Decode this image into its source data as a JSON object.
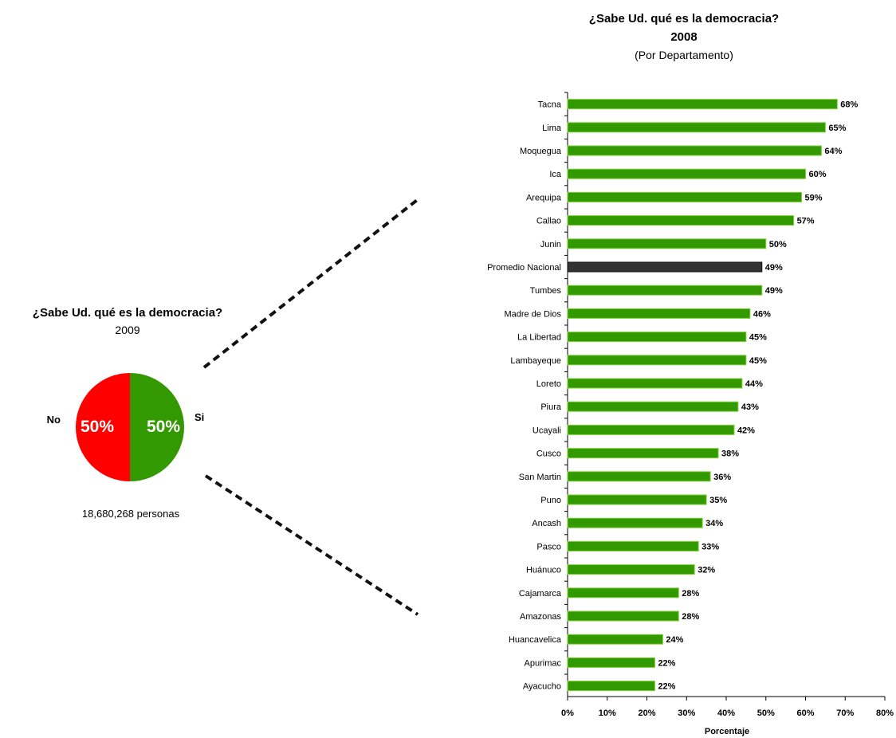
{
  "colors": {
    "yes": "#339900",
    "no": "#ff0000",
    "national": "#333333",
    "yes_border": "#7fd13b"
  },
  "chart_data": [
    {
      "type": "pie",
      "title": "¿Sabe Ud. qué es la democracia?",
      "subtitle": "2009",
      "slices": [
        {
          "label": "Si",
          "value": 50,
          "value_label": "50%"
        },
        {
          "label": "No",
          "value": 50,
          "value_label": "50%"
        }
      ],
      "footnote": "18,680,268 personas"
    },
    {
      "type": "bar",
      "orientation": "horizontal",
      "title": "¿Sabe Ud. qué es la democracia?",
      "subtitle": "2008",
      "subtitle2": "(Por Departamento)",
      "xlabel": "Porcentaje",
      "xlim": [
        0,
        80
      ],
      "xticks": [
        "0%",
        "10%",
        "20%",
        "30%",
        "40%",
        "50%",
        "60%",
        "70%",
        "80%"
      ],
      "highlight": "Promedio Nacional",
      "categories": [
        "Tacna",
        "Lima",
        "Moquegua",
        "Ica",
        "Arequipa",
        "Callao",
        "Junin",
        "Promedio Nacional",
        "Tumbes",
        "Madre de Dios",
        "La Libertad",
        "Lambayeque",
        "Loreto",
        "Piura",
        "Ucayali",
        "Cusco",
        "San Martin",
        "Puno",
        "Ancash",
        "Pasco",
        "Huánuco",
        "Cajamarca",
        "Amazonas",
        "Huancavelica",
        "Apurimac",
        "Ayacucho"
      ],
      "values": [
        68,
        65,
        64,
        60,
        59,
        57,
        50,
        49,
        49,
        46,
        45,
        45,
        44,
        43,
        42,
        38,
        36,
        35,
        34,
        33,
        32,
        28,
        28,
        24,
        22,
        22
      ],
      "value_labels": [
        "68%",
        "65%",
        "64%",
        "60%",
        "59%",
        "57%",
        "50%",
        "49%",
        "49%",
        "46%",
        "45%",
        "45%",
        "44%",
        "43%",
        "42%",
        "38%",
        "36%",
        "35%",
        "34%",
        "33%",
        "32%",
        "28%",
        "28%",
        "24%",
        "22%",
        "22%"
      ]
    }
  ]
}
